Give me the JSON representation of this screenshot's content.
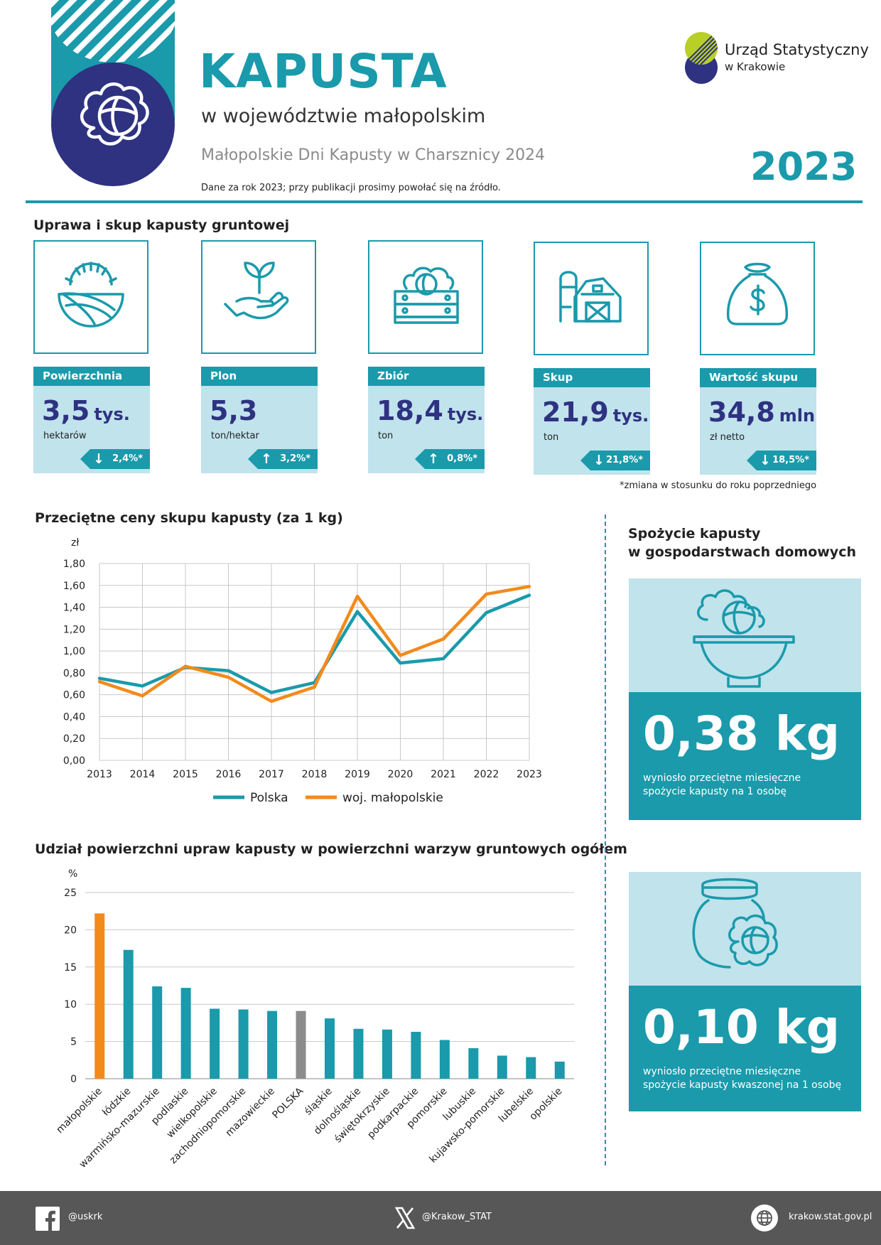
{
  "header": {
    "title": "KAPUSTA",
    "subtitle": "w województwie małopolskim",
    "event": "Małopolskie Dni Kapusty w Charsznicy 2024",
    "note": "Dane za rok 2023; przy publikacji prosimy powołać się na źródło.",
    "year": "2023",
    "logo_name": "Urząd Statystyczny",
    "logo_sub": "w Krakowie",
    "colors": {
      "teal": "#1a9aab",
      "navy": "#2e3281",
      "light": "#c0e3ec",
      "lime": "#b7cf26",
      "orange": "#f38a1c",
      "grey": "#8c8c8c"
    }
  },
  "section_cards": "Uprawa i skup kapusty gruntowej",
  "cards": [
    {
      "icon": "field-sun-icon",
      "label": "Powierzchnia",
      "value": "3,5",
      "unit_big": "tys.",
      "unit": "hektarów",
      "change": "2,4%*",
      "direction": "down"
    },
    {
      "icon": "seedling-hand-icon",
      "label": "Plon",
      "value": "5,3",
      "unit_big": "",
      "unit": "ton/hektar",
      "change": "3,2%*",
      "direction": "up"
    },
    {
      "icon": "cabbage-crate-icon",
      "label": "Zbiór",
      "value": "18,4",
      "unit_big": "tys.",
      "unit": "ton",
      "change": "0,8%*",
      "direction": "up"
    },
    {
      "icon": "barn-silo-icon",
      "label": "Skup",
      "value": "21,9",
      "unit_big": "tys.",
      "unit": "ton",
      "change": "21,8%*",
      "direction": "down"
    },
    {
      "icon": "money-bag-icon",
      "label": "Wartość skupu",
      "value": "34,8",
      "unit_big": "mln",
      "unit": "zł netto",
      "change": "18,5%*",
      "direction": "down"
    }
  ],
  "footnote": "*zmiana w stosunku do roku poprzedniego",
  "line_chart_title": "Przeciętne ceny skupu kapusty (za 1 kg)",
  "bar_chart_title": "Udział powierzchni upraw kapusty w powierzchni warzyw gruntowych ogółem",
  "consumption": {
    "title_line1": "Spożycie kapusty",
    "title_line2": "w gospodarstwach domowych",
    "box1": {
      "icon": "cabbage-bowl-icon",
      "value": "0,38 kg",
      "text_line1": "wyniosło przeciętne miesięczne",
      "text_line2": "spożycie kapusty na 1 osobę"
    },
    "box2": {
      "icon": "sauerkraut-jar-icon",
      "value": "0,10 kg",
      "text_line1": "wyniosło przeciętne miesięczne",
      "text_line2": "spożycie kapusty kwaszonej na 1 osobę"
    }
  },
  "chart_data": [
    {
      "type": "line",
      "title": "Przeciętne ceny skupu kapusty (za 1 kg)",
      "ylabel": "zł",
      "x": [
        "2013",
        "2014",
        "2015",
        "2016",
        "2017",
        "2018",
        "2019",
        "2020",
        "2021",
        "2022",
        "2023"
      ],
      "ylim": [
        0,
        1.8
      ],
      "yticks": [
        "0,00",
        "0,20",
        "0,40",
        "0,60",
        "0,80",
        "1,00",
        "1,20",
        "1,40",
        "1,60",
        "1,80"
      ],
      "grid": true,
      "legend": "bottom",
      "series": [
        {
          "name": "Polska",
          "color": "#1a9aab",
          "values": [
            0.75,
            0.68,
            0.85,
            0.82,
            0.62,
            0.71,
            1.36,
            0.89,
            0.93,
            1.35,
            1.51
          ]
        },
        {
          "name": "woj. małopolskie",
          "color": "#f38a1c",
          "values": [
            0.72,
            0.59,
            0.86,
            0.76,
            0.54,
            0.67,
            1.5,
            0.96,
            1.11,
            1.52,
            1.59
          ]
        }
      ]
    },
    {
      "type": "bar",
      "title": "Udział powierzchni upraw kapusty w powierzchni warzyw gruntowych ogółem",
      "ylabel": "%",
      "ylim": [
        0,
        25
      ],
      "yticks": [
        "0",
        "5",
        "10",
        "15",
        "20",
        "25"
      ],
      "grid": true,
      "categories": [
        "małopolskie",
        "łódzkie",
        "warmińsko-mazurskie",
        "podlaskie",
        "wielkopolskie",
        "zachodniopomorskie",
        "mazowieckie",
        "POLSKA",
        "śląskie",
        "dolnośląskie",
        "świętokrzyskie",
        "podkarpackie",
        "pomorskie",
        "lubuskie",
        "kujawsko-pomorskie",
        "lubelskie",
        "opolskie"
      ],
      "values": [
        22.2,
        17.3,
        12.4,
        12.2,
        9.4,
        9.3,
        9.1,
        9.1,
        8.1,
        6.7,
        6.6,
        6.3,
        5.2,
        4.1,
        3.1,
        2.9,
        2.3
      ],
      "colors": [
        "#f38a1c",
        "#1a9aab",
        "#1a9aab",
        "#1a9aab",
        "#1a9aab",
        "#1a9aab",
        "#1a9aab",
        "#8c8c8c",
        "#1a9aab",
        "#1a9aab",
        "#1a9aab",
        "#1a9aab",
        "#1a9aab",
        "#1a9aab",
        "#1a9aab",
        "#1a9aab",
        "#1a9aab"
      ]
    }
  ],
  "footer": {
    "facebook": "@uskrk",
    "x": "@Krakow_STAT",
    "web": "krakow.stat.gov.pl"
  }
}
